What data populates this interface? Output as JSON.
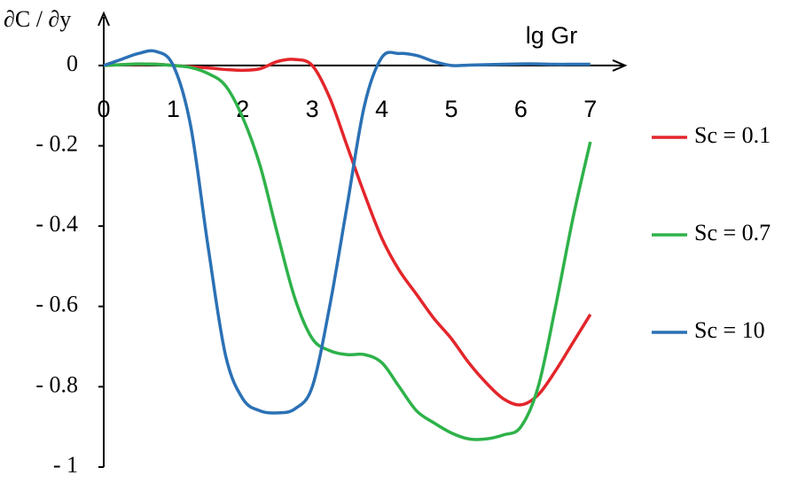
{
  "chart_data": {
    "type": "line",
    "y_label": "∂C / ∂y",
    "x_label": "lg Gr",
    "x": [
      0,
      0.25,
      0.5,
      0.75,
      1,
      1.25,
      1.5,
      1.75,
      2,
      2.25,
      2.5,
      2.75,
      3,
      3.25,
      3.5,
      3.75,
      4,
      4.25,
      4.5,
      4.75,
      5,
      5.25,
      5.5,
      5.75,
      6,
      6.25,
      6.5,
      6.75,
      7
    ],
    "series": [
      {
        "name": "Sc = 0.1",
        "color": "#e3262b",
        "values": [
          0,
          0.002,
          0.003,
          0.003,
          0,
          -0.003,
          -0.006,
          -0.01,
          -0.012,
          -0.008,
          0.01,
          0.015,
          0,
          -0.08,
          -0.2,
          -0.32,
          -0.43,
          -0.51,
          -0.57,
          -0.63,
          -0.68,
          -0.74,
          -0.79,
          -0.83,
          -0.845,
          -0.82,
          -0.76,
          -0.69,
          -0.62
        ]
      },
      {
        "name": "Sc = 0.7",
        "color": "#2eb24a",
        "values": [
          0,
          0.002,
          0.004,
          0.003,
          0,
          -0.005,
          -0.02,
          -0.05,
          -0.13,
          -0.25,
          -0.42,
          -0.58,
          -0.68,
          -0.71,
          -0.72,
          -0.72,
          -0.74,
          -0.8,
          -0.86,
          -0.89,
          -0.915,
          -0.93,
          -0.93,
          -0.92,
          -0.9,
          -0.8,
          -0.6,
          -0.38,
          -0.19
        ]
      },
      {
        "name": "Sc = 10",
        "color": "#2b71b5",
        "values": [
          0,
          0.015,
          0.03,
          0.035,
          0,
          -0.15,
          -0.45,
          -0.72,
          -0.83,
          -0.86,
          -0.865,
          -0.855,
          -0.8,
          -0.6,
          -0.35,
          -0.1,
          0.02,
          0.03,
          0.025,
          0.01,
          0,
          0.001,
          0.002,
          0.003,
          0.004,
          0.004,
          0.003,
          0.003,
          0.003
        ]
      }
    ],
    "xlim": [
      0,
      7.5
    ],
    "ylim": [
      -1,
      0.13
    ],
    "xticks": [
      0,
      1,
      2,
      3,
      4,
      5,
      6,
      7
    ],
    "yticks": [
      0,
      {
        "value": -0.2,
        "label": "- 0.2"
      },
      {
        "value": -0.4,
        "label": "- 0.4"
      },
      {
        "value": -0.6,
        "label": "- 0.6"
      },
      {
        "value": -0.8,
        "label": "- 0.8"
      },
      {
        "value": -1,
        "label": "- 1"
      }
    ],
    "grid": false,
    "legend": "right"
  }
}
